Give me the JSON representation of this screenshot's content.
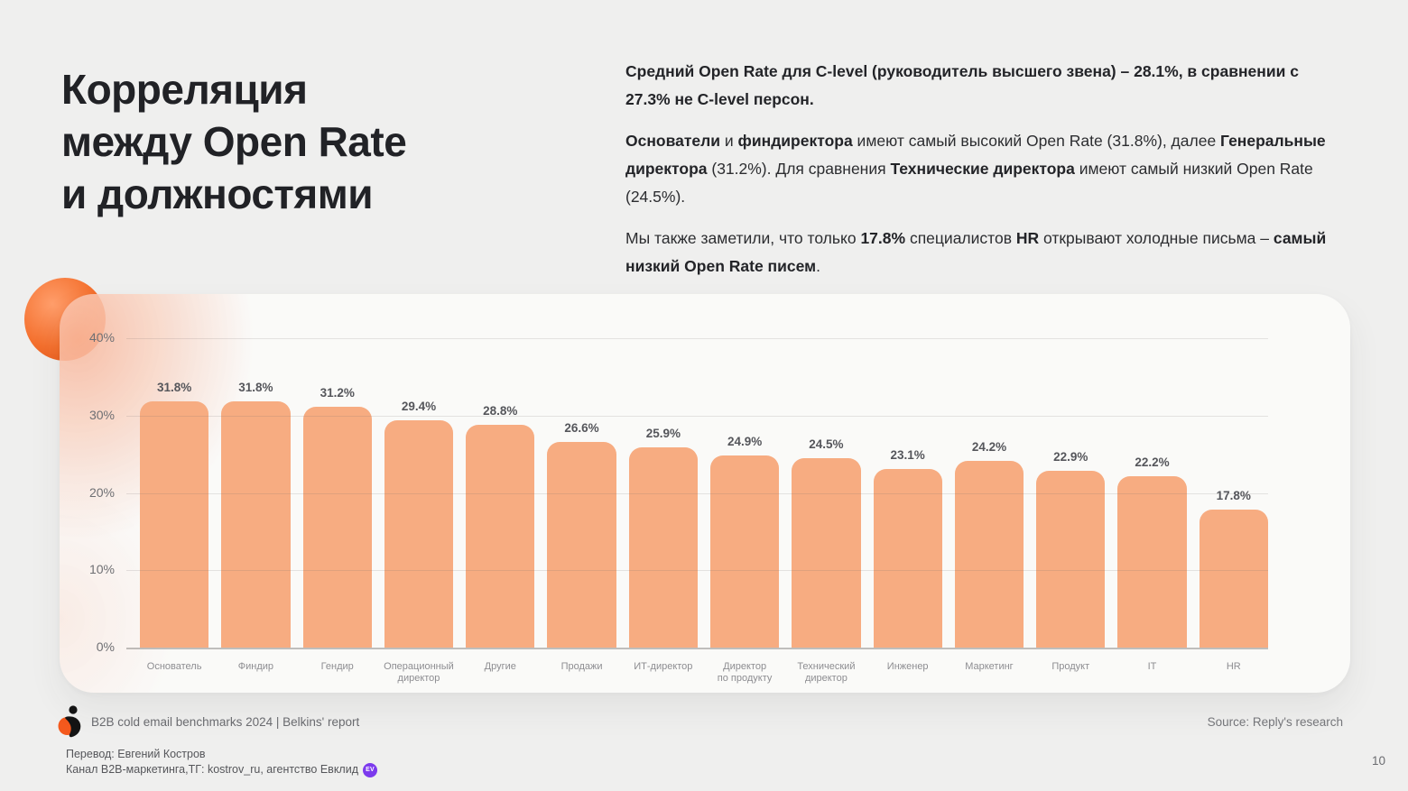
{
  "slide": {
    "title_lines": [
      "Корреляция",
      "между Open Rate",
      "и должностями"
    ],
    "page_number": "10"
  },
  "insights": {
    "paragraphs": [
      {
        "segments": [
          {
            "text": "Средний Open Rate для C-level (руководитель высшего звена) – 28.1%, в сравнении с 27.3% не C-level персон.",
            "bold": true
          }
        ]
      },
      {
        "segments": [
          {
            "text": "Основатели",
            "bold": true
          },
          {
            "text": " и ",
            "bold": false
          },
          {
            "text": "финдиректора",
            "bold": true
          },
          {
            "text": " имеют самый высокий Open Rate (31.8%), далее ",
            "bold": false
          },
          {
            "text": "Генеральные директора",
            "bold": true
          },
          {
            "text": " (31.2%). Для сравнения ",
            "bold": false
          },
          {
            "text": "Технические директора",
            "bold": true
          },
          {
            "text": " имеют самый низкий Open Rate (24.5%).",
            "bold": false
          }
        ]
      },
      {
        "segments": [
          {
            "text": "Мы также заметили, что только ",
            "bold": false
          },
          {
            "text": "17.8%",
            "bold": true
          },
          {
            "text": " специалистов ",
            "bold": false
          },
          {
            "text": "HR",
            "bold": true
          },
          {
            "text": " открывают холодные письма – ",
            "bold": false
          },
          {
            "text": "самый низкий Open Rate писем",
            "bold": true
          },
          {
            "text": ".",
            "bold": false
          }
        ]
      }
    ]
  },
  "chart_data": {
    "type": "bar",
    "title": "",
    "xlabel": "",
    "ylabel": "",
    "categories": [
      "Основатель",
      "Финдир",
      "Гендир",
      "Операционный\nдиректор",
      "Другие",
      "Продажи",
      "ИТ-директор",
      "Директор\nпо продукту",
      "Технический\nдиректор",
      "Инженер",
      "Маркетинг",
      "Продукт",
      "IT",
      "HR"
    ],
    "values": [
      31.8,
      31.8,
      31.2,
      29.4,
      28.8,
      26.6,
      25.9,
      24.9,
      24.5,
      23.1,
      24.2,
      22.9,
      22.2,
      17.8
    ],
    "yticks": [
      "40%",
      "30%",
      "20%",
      "10%",
      "0%"
    ],
    "ylim": [
      0,
      40
    ],
    "grid": true,
    "legend": false,
    "bar_color": "#F7AC81"
  },
  "footer": {
    "report_label": "B2B cold email benchmarks 2024 | Belkins' report",
    "source_label": "Source: Reply's research",
    "translation_line1": "Перевод: Евгений Костров",
    "translation_line2": "Канал B2B-маркетинга,ТГ: kostrov_ru, агентство Евклид",
    "badge_text": "EV"
  },
  "colors": {
    "accent_orange": "#F4702E",
    "bar_fill": "#F7AC81",
    "badge_purple": "#7C3AED",
    "background": "#EFEFEE"
  }
}
